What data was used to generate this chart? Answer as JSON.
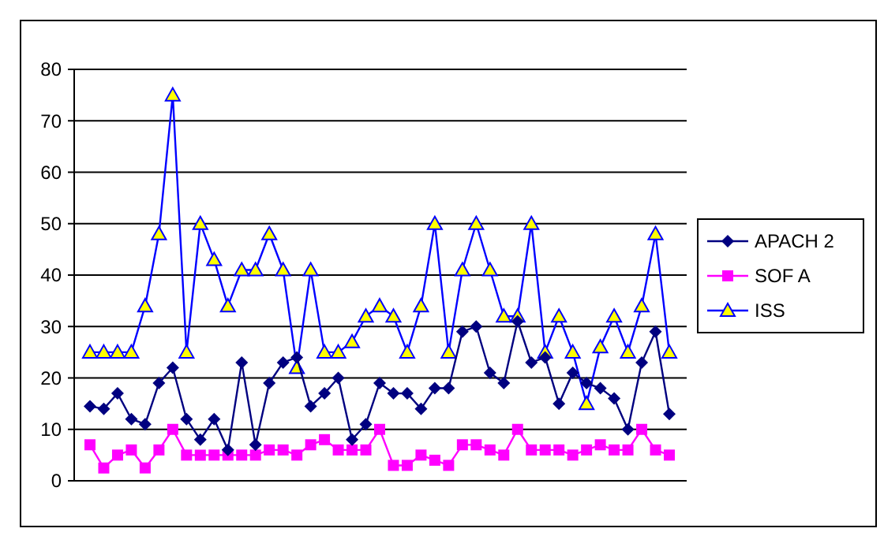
{
  "chart_data": {
    "type": "line",
    "categories": [
      null,
      null,
      null,
      null,
      null,
      null,
      null,
      null,
      null,
      null,
      null,
      null,
      null,
      null,
      null,
      null,
      null,
      null,
      null,
      null,
      null,
      null,
      null,
      null,
      null,
      null,
      null,
      null,
      null,
      null,
      null,
      null,
      null,
      null,
      null,
      null,
      null,
      null,
      null,
      null,
      null,
      null,
      null
    ],
    "series": [
      {
        "name": "APACH 2",
        "color": "#000080",
        "marker": "diamond",
        "values": [
          14.5,
          14,
          17,
          12,
          11,
          19,
          22,
          12,
          8,
          12,
          6,
          23,
          7,
          19,
          23,
          24,
          14.5,
          17,
          20,
          8,
          11,
          19,
          17,
          17,
          14,
          18,
          18,
          29,
          30,
          21,
          19,
          31,
          23,
          24,
          15,
          21,
          19,
          18,
          16,
          10,
          23,
          29,
          13
        ]
      },
      {
        "name": "SOF A",
        "color": "#ff00ff",
        "marker": "square",
        "values": [
          7,
          2.5,
          5,
          6,
          2.5,
          6,
          10,
          5,
          5,
          5,
          5,
          5,
          5,
          6,
          6,
          5,
          7,
          8,
          6,
          6,
          6,
          10,
          3,
          3,
          5,
          4,
          3,
          7,
          7,
          6,
          5,
          10,
          6,
          6,
          6,
          5,
          6,
          7,
          6,
          6,
          10,
          6,
          5
        ]
      },
      {
        "name": "ISS",
        "color": "#0000ff",
        "marker": "triangle",
        "values": [
          25,
          25,
          25,
          25,
          34,
          48,
          75,
          25,
          50,
          43,
          34,
          41,
          41,
          48,
          41,
          22,
          41,
          25,
          25,
          27,
          32,
          34,
          32,
          25,
          34,
          50,
          25,
          41,
          50,
          41,
          32,
          32,
          50,
          25,
          32,
          25,
          15,
          26,
          32,
          25,
          34,
          48,
          25
        ]
      }
    ],
    "ylim": [
      0,
      80
    ],
    "yticks": [
      0,
      10,
      20,
      30,
      40,
      50,
      60,
      70,
      80
    ],
    "grid": "y",
    "legend": "right",
    "tick_labels": "y"
  }
}
